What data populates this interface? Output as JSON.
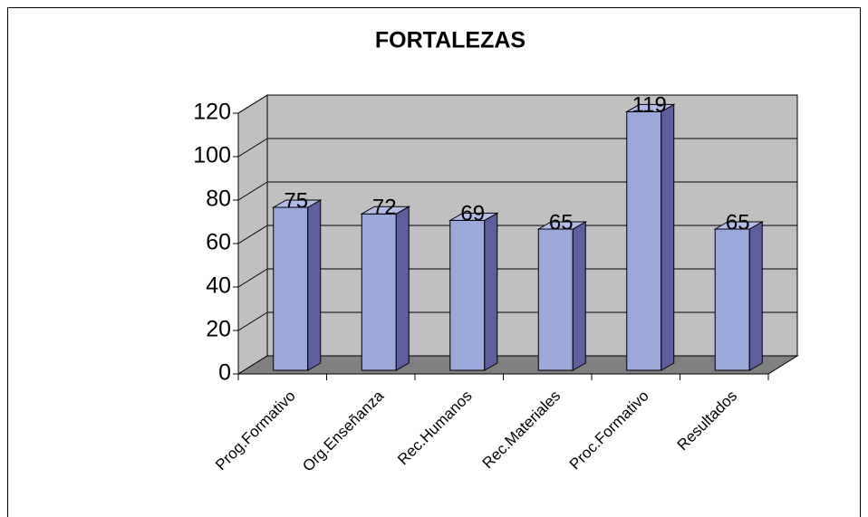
{
  "chart_data": {
    "type": "bar3d",
    "title": "FORTALEZAS",
    "categories": [
      "Prog.Formativo",
      "Org.Enseñanza",
      "Rec.Humanos",
      "Rec.Materiales",
      "Proc.Formativo",
      "Resultados"
    ],
    "values": [
      75,
      72,
      69,
      65,
      119,
      65
    ],
    "color": "#9aa8da",
    "ylim": [
      0,
      120
    ],
    "yticks": [
      0,
      20,
      40,
      60,
      80,
      100,
      120
    ],
    "grid": true
  }
}
